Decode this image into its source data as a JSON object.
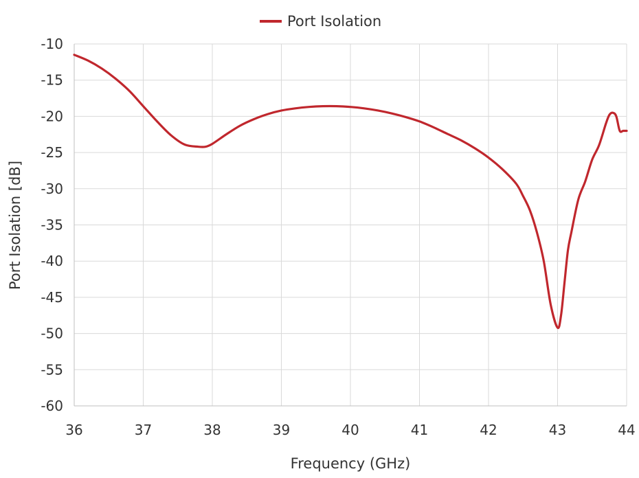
{
  "chart_data": {
    "type": "line",
    "xlabel": "Frequency (GHz)",
    "ylabel": "Port Isolation [dB]",
    "xlim": [
      36,
      44
    ],
    "ylim": [
      -60,
      -10
    ],
    "xticks": [
      "36",
      "37",
      "38",
      "39",
      "40",
      "41",
      "42",
      "43",
      "44"
    ],
    "yticks": [
      "-10",
      "-15",
      "-20",
      "-25",
      "-30",
      "-35",
      "-40",
      "-45",
      "-50",
      "-55",
      "-60"
    ],
    "grid": true,
    "legend_position": "top-center",
    "series": [
      {
        "name": "Port Isolation",
        "color": "#c0272d",
        "x": [
          36.0,
          36.2,
          36.4,
          36.6,
          36.8,
          37.0,
          37.2,
          37.4,
          37.6,
          37.8,
          37.9,
          38.0,
          38.2,
          38.4,
          38.6,
          38.8,
          39.0,
          39.2,
          39.4,
          39.6,
          39.8,
          40.0,
          40.2,
          40.4,
          40.6,
          40.8,
          41.0,
          41.2,
          41.4,
          41.6,
          41.8,
          42.0,
          42.2,
          42.4,
          42.5,
          42.6,
          42.7,
          42.8,
          42.9,
          43.0,
          43.05,
          43.1,
          43.15,
          43.2,
          43.3,
          43.4,
          43.5,
          43.6,
          43.7,
          43.75,
          43.8,
          43.85,
          43.9,
          43.95,
          44.0
        ],
        "y": [
          -11.5,
          -12.3,
          -13.4,
          -14.8,
          -16.5,
          -18.6,
          -20.7,
          -22.6,
          -23.9,
          -24.2,
          -24.2,
          -23.8,
          -22.5,
          -21.3,
          -20.4,
          -19.7,
          -19.2,
          -18.9,
          -18.7,
          -18.6,
          -18.6,
          -18.7,
          -18.9,
          -19.2,
          -19.6,
          -20.1,
          -20.7,
          -21.5,
          -22.4,
          -23.3,
          -24.4,
          -25.7,
          -27.3,
          -29.3,
          -31.0,
          -33.0,
          -36.0,
          -40.0,
          -46.0,
          -49.2,
          -47.5,
          -43.0,
          -38.5,
          -36.0,
          -31.5,
          -29.0,
          -26.0,
          -24.0,
          -21.0,
          -19.8,
          -19.5,
          -20.0,
          -22.0,
          -22.0,
          -22.0
        ]
      }
    ]
  }
}
